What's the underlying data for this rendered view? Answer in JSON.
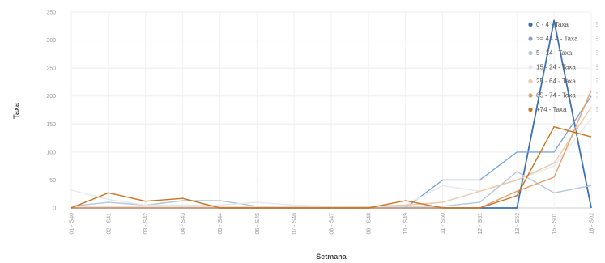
{
  "chart_data": {
    "type": "line",
    "xlabel": "Setmana",
    "ylabel": "Taxa",
    "ylim": [
      0,
      350
    ],
    "yticks": [
      "0",
      "50",
      "100",
      "150",
      "200",
      "250",
      "300",
      "350"
    ],
    "categories": [
      "01 - S40",
      "02 - S41",
      "03 - S42",
      "04 - S43",
      "05 - S44",
      "06 - S45",
      "07 - S46",
      "08 - S47",
      "09 - S48",
      "10 - S49",
      "11 - S50",
      "12 - S51",
      "13 - S52",
      "15 - S01",
      "16 - S02"
    ],
    "grid": true,
    "legend_position": "top-right",
    "series": [
      {
        "name": "0 - 4 - Taxa",
        "color": "#3b6fb6",
        "values": [
          0,
          0,
          0,
          0,
          0,
          0,
          0,
          0,
          0,
          0,
          0,
          0,
          0,
          335,
          0
        ]
      },
      {
        "name": ">= 4 - 4 - Taxa",
        "color": "#7fa7d6",
        "values": [
          0,
          0,
          0,
          0,
          0,
          0,
          0,
          0,
          0,
          0,
          50,
          50,
          100,
          100,
          200
        ]
      },
      {
        "name": "5 - 14 - Taxa",
        "color": "#b4c6dc",
        "values": [
          3,
          10,
          5,
          13,
          13,
          3,
          3,
          3,
          3,
          3,
          3,
          10,
          65,
          27,
          40
        ]
      },
      {
        "name": "15 - 24 - Taxa",
        "color": "#e3e8ef",
        "values": [
          32,
          15,
          5,
          5,
          5,
          10,
          5,
          3,
          3,
          5,
          40,
          30,
          50,
          75,
          160
        ]
      },
      {
        "name": "25 - 64 - Taxa",
        "color": "#ecc9a8",
        "values": [
          3,
          3,
          3,
          3,
          3,
          3,
          3,
          3,
          3,
          5,
          10,
          30,
          50,
          80,
          180
        ]
      },
      {
        "name": "65 - 74 - Taxa",
        "color": "#e3a171",
        "values": [
          0,
          0,
          0,
          0,
          0,
          0,
          0,
          0,
          0,
          0,
          0,
          0,
          30,
          55,
          210
        ]
      },
      {
        "name": "+74 - Taxa",
        "color": "#c8731e",
        "values": [
          0,
          27,
          12,
          17,
          0,
          0,
          0,
          0,
          0,
          13,
          0,
          0,
          22,
          145,
          127
        ]
      }
    ]
  }
}
